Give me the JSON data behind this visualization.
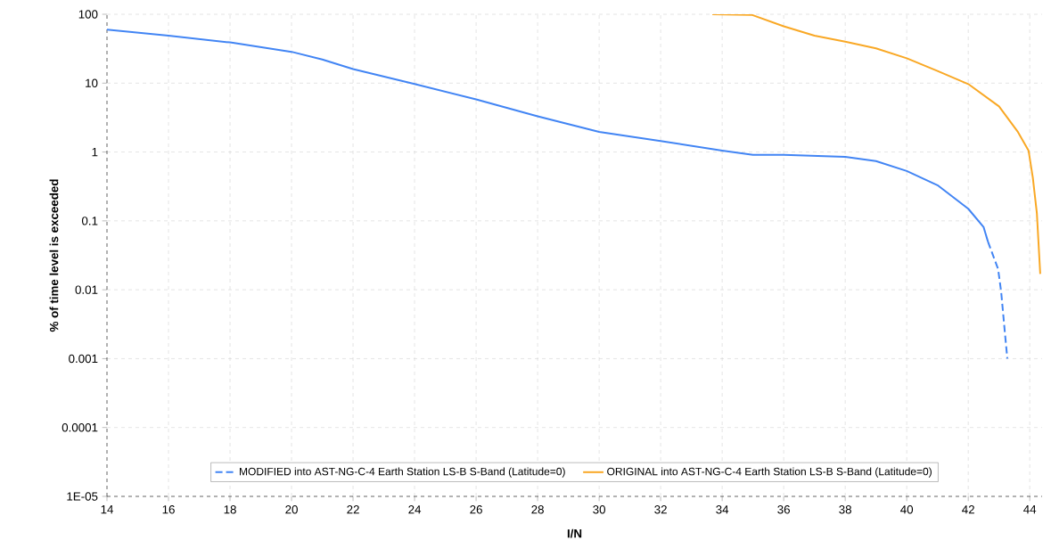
{
  "chart_data": {
    "type": "line",
    "xlabel": "I/N",
    "ylabel": "% of time level is exceeded",
    "log": "y",
    "grid": true,
    "legend": "bottom",
    "marker": "none",
    "xlim": [
      14,
      44.4
    ],
    "xticks": [
      14,
      16,
      18,
      20,
      22,
      24,
      26,
      28,
      30,
      32,
      34,
      36,
      38,
      40,
      42,
      44
    ],
    "ylim": [
      1e-05,
      100
    ],
    "yticks": [
      {
        "value": 1e-05,
        "label": "1E-05"
      },
      0.0001,
      0.001,
      0.01,
      0.1,
      1,
      10,
      100
    ],
    "series": [
      {
        "color": "#4285f4",
        "line_style": "solid",
        "x": [
          14,
          16,
          18,
          20,
          21,
          22,
          24,
          26,
          28,
          30,
          32,
          34,
          35,
          36,
          38,
          39,
          40,
          41,
          42,
          42.5,
          42.64
        ],
        "values": [
          60,
          49,
          39,
          28.5,
          22,
          16,
          9.7,
          5.8,
          3.3,
          1.96,
          1.44,
          1.05,
          0.91,
          0.91,
          0.85,
          0.74,
          0.53,
          0.33,
          0.15,
          0.081,
          0.05
        ]
      },
      {
        "name": "MODIFIED into AST-NG-C-4 Earth Station LS-B S-Band (Latitude=0)",
        "color": "#4285f4",
        "line_style": "dashed",
        "x": [
          42.64,
          42.97,
          43.07,
          43.19,
          43.27
        ],
        "values": [
          0.05,
          0.02,
          0.0093,
          0.0024,
          0.001
        ]
      },
      {
        "name": "ORIGINAL into AST-NG-C-4 Earth Station LS-B S-Band (Latitude=0)",
        "color": "#f9a825",
        "line_style": "solid",
        "x": [
          33.68,
          34.96,
          36,
          37,
          38,
          39,
          40,
          41,
          42,
          43,
          43.6,
          43.96,
          44.1,
          44.23,
          44.34
        ],
        "values": [
          100,
          98,
          67,
          49,
          40,
          32,
          23,
          15,
          9.7,
          4.6,
          2.0,
          1.05,
          0.42,
          0.13,
          0.017
        ]
      }
    ]
  }
}
